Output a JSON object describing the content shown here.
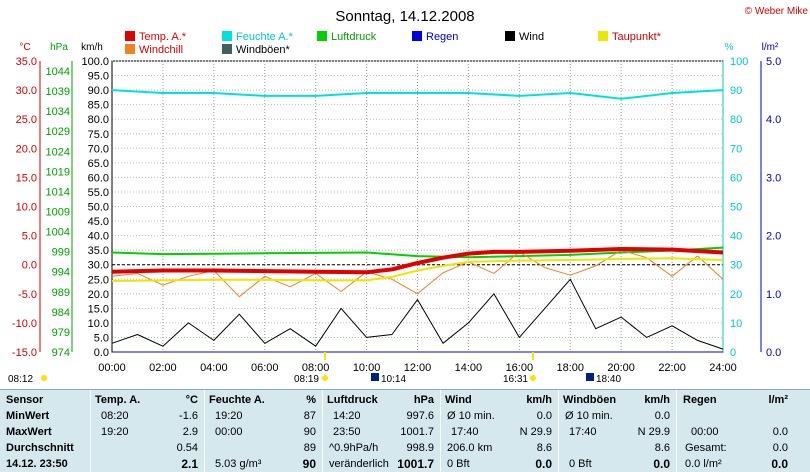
{
  "title": "Sonntag, 14.12.2008",
  "copyright": "© Weber Mike",
  "legend": [
    {
      "label": "Temp. A.*",
      "color": "#e00000",
      "text_color": "#e00000"
    },
    {
      "label": "Feuchte A.*",
      "color": "#00e0e0",
      "text_color": "#00c8c8"
    },
    {
      "label": "Luftdruck",
      "color": "#00d000",
      "text_color": "#00a000"
    },
    {
      "label": "Regen",
      "color": "#0000e0",
      "text_color": "#0000d0"
    },
    {
      "label": "Wind",
      "color": "#000000",
      "text_color": "#000000"
    },
    {
      "label": "Taupunkt*",
      "color": "#e8e800",
      "text_color": "#d00000"
    },
    {
      "label": "Windchill",
      "color": "#f08020",
      "text_color": "#d00000"
    },
    {
      "label": "Windböen*",
      "color": "#406060",
      "text_color": "#000000"
    }
  ],
  "axes": {
    "temp_unit": "°C",
    "hpa_unit": "hPa",
    "kmh_unit": "km/h",
    "pct_unit": "%",
    "rain_unit": "l/m²",
    "temp_ticks": [
      "35.0",
      "30.0",
      "25.0",
      "20.0",
      "15.0",
      "10.0",
      "5.0",
      "0.0",
      "-5.0",
      "-10.0",
      "-15.0"
    ],
    "hpa_ticks": [
      "1044",
      "1039",
      "1034",
      "1029",
      "1024",
      "1019",
      "1014",
      "1009",
      "1004",
      "999",
      "994",
      "989",
      "984",
      "979",
      "974"
    ],
    "kmh_ticks": [
      "100.0",
      "95.0",
      "90.0",
      "85.0",
      "80.0",
      "75.0",
      "70.0",
      "65.0",
      "60.0",
      "55.0",
      "50.0",
      "45.0",
      "40.0",
      "35.0",
      "30.0",
      "25.0",
      "20.0",
      "15.0",
      "10.0",
      "5.0",
      "0.0"
    ],
    "pct_ticks": [
      "100",
      "90",
      "80",
      "70",
      "60",
      "50",
      "40",
      "30",
      "20",
      "10",
      "0"
    ],
    "rain_ticks": [
      "5.0",
      "4.0",
      "3.0",
      "2.0",
      "1.0",
      "0.0"
    ],
    "x_ticks": [
      "00:00",
      "02:00",
      "04:00",
      "06:00",
      "08:00",
      "10:00",
      "12:00",
      "14:00",
      "16:00",
      "18:00",
      "20:00",
      "22:00",
      "24:00"
    ]
  },
  "markers": {
    "sunrise_prev": "08:12",
    "sunrise": "08:19",
    "moon1": "10:14",
    "sunset": "16:31",
    "moon2": "18:40"
  },
  "chart_data": {
    "type": "line",
    "x_unit": "hours",
    "x_range": [
      0,
      24
    ],
    "series": [
      {
        "name": "Feuchte A.*",
        "axis": "%",
        "x": [
          0,
          2,
          4,
          6,
          8,
          10,
          12,
          14,
          16,
          18,
          20,
          22,
          24
        ],
        "values": [
          90,
          89,
          89,
          88,
          88,
          89,
          89,
          89,
          88,
          89,
          87,
          89,
          90
        ]
      },
      {
        "name": "Luftdruck",
        "axis": "hPa",
        "x": [
          0,
          2,
          4,
          6,
          8,
          10,
          12,
          14,
          16,
          18,
          20,
          22,
          24
        ],
        "values": [
          998.8,
          998.4,
          998.5,
          998.6,
          998.7,
          998.8,
          997.9,
          997.6,
          997.9,
          998.2,
          998.8,
          999.3,
          1000.0
        ]
      },
      {
        "name": "Temp. A.*",
        "axis": "°C",
        "x": [
          0,
          2,
          4,
          6,
          8,
          10,
          11,
          12,
          13,
          14,
          15,
          16,
          18,
          20,
          22,
          24
        ],
        "values": [
          -1.2,
          -1.0,
          -1.0,
          -1.1,
          -1.2,
          -1.3,
          -0.8,
          0.3,
          1.2,
          1.9,
          2.2,
          2.2,
          2.4,
          2.7,
          2.6,
          2.1
        ]
      },
      {
        "name": "Taupunkt*",
        "axis": "°C",
        "x": [
          0,
          2,
          4,
          6,
          8,
          10,
          11,
          12,
          13,
          14,
          16,
          18,
          20,
          22,
          24
        ],
        "values": [
          -2.8,
          -2.7,
          -2.6,
          -2.6,
          -2.7,
          -2.7,
          -2.1,
          -1.0,
          -0.2,
          0.5,
          0.7,
          0.8,
          1.0,
          1.1,
          0.8
        ]
      },
      {
        "name": "Windchill",
        "axis": "°C",
        "x": [
          0,
          1,
          2,
          3,
          4,
          5,
          6,
          7,
          8,
          9,
          10,
          11,
          12,
          13,
          14,
          15,
          16,
          17,
          18,
          19,
          20,
          21,
          22,
          23,
          24
        ],
        "values": [
          -2.0,
          -1.5,
          -3.5,
          -2.0,
          -1.0,
          -5.5,
          -2.0,
          -3.8,
          -1.5,
          -4.6,
          -1.2,
          -2.5,
          -5.0,
          -1.4,
          0.5,
          -1.5,
          2.2,
          -0.5,
          -1.8,
          -0.2,
          2.5,
          1.2,
          -2.0,
          1.5,
          -2.5
        ]
      },
      {
        "name": "Wind",
        "axis": "km/h",
        "x": [
          0,
          1,
          2,
          3,
          4,
          5,
          6,
          7,
          8,
          9,
          10,
          11,
          12,
          13,
          14,
          15,
          16,
          17,
          18,
          19,
          20,
          21,
          22,
          23,
          24
        ],
        "values": [
          3,
          6,
          2,
          10,
          4,
          13,
          3,
          8,
          2,
          15,
          5,
          6,
          18,
          3,
          10,
          20,
          5,
          15,
          25,
          8,
          12,
          5,
          9,
          4,
          1
        ]
      },
      {
        "name": "Windböen*",
        "axis": "km/h",
        "x": [
          0,
          3,
          6,
          9,
          12,
          15,
          18,
          21,
          24
        ],
        "values": [
          0,
          0,
          0,
          0,
          0,
          0,
          0,
          0,
          0
        ]
      },
      {
        "name": "Regen",
        "axis": "l/m²",
        "x": [
          0,
          24
        ],
        "values": [
          0,
          0
        ]
      }
    ],
    "ylim": {
      "°C": [
        -15,
        35
      ],
      "hPa": [
        974,
        1046.5
      ],
      "km/h": [
        0,
        100
      ],
      "%": [
        0,
        100
      ],
      "l/m²": [
        0,
        5
      ]
    }
  },
  "table": {
    "sensor": {
      "header": "Sensor",
      "rows": [
        "MinWert",
        "MaxWert",
        "Durchschnitt",
        "14.12. 23:50"
      ]
    },
    "temp": {
      "header": "Temp. A.",
      "unit": "°C",
      "rows": [
        [
          "08:20",
          "-1.6"
        ],
        [
          "19:20",
          "2.9"
        ],
        [
          "",
          "0.54"
        ],
        [
          "",
          "2.1"
        ]
      ]
    },
    "hum": {
      "header": "Feuchte A.",
      "unit": "%",
      "rows": [
        [
          "19:20",
          "87"
        ],
        [
          "00:00",
          "90"
        ],
        [
          "",
          "89"
        ],
        [
          "5.03 g/m³",
          "90"
        ]
      ]
    },
    "press": {
      "header": "Luftdruck",
      "unit": "hPa",
      "rows": [
        [
          "14:20",
          "997.6"
        ],
        [
          "23:50",
          "1001.7"
        ],
        [
          "^0.9hPa/h",
          "998.9"
        ],
        [
          "veränderlich",
          "1001.7"
        ]
      ]
    },
    "wind": {
      "header": "Wind",
      "unit": "km/h",
      "rows": [
        [
          "Ø 10 min.",
          "0.0"
        ],
        [
          "17:40",
          "N 29.9"
        ],
        [
          "206.0 km",
          "8.6"
        ],
        [
          "0 Bft",
          "0.0"
        ]
      ]
    },
    "gust": {
      "header": "Windböen",
      "unit": "km/h",
      "rows": [
        [
          "Ø 10 min.",
          "0.0"
        ],
        [
          "17:40",
          "N 29.9"
        ],
        [
          "",
          "8.6"
        ],
        [
          "0 Bft",
          "0.0"
        ]
      ]
    },
    "rain": {
      "header": "Regen",
      "unit": "l/m²",
      "rows": [
        [
          "",
          ""
        ],
        [
          "00:00",
          "0.0"
        ],
        [
          "Gesamt:",
          "0.0"
        ],
        [
          "0.0 l/m²",
          "0.0"
        ]
      ]
    }
  }
}
